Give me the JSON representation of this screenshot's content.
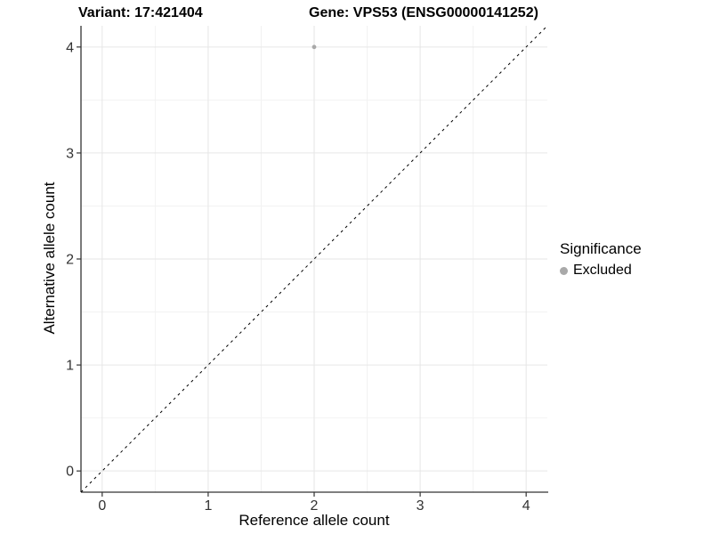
{
  "chart_data": {
    "type": "scatter",
    "title_left": "Variant: 17:421404",
    "title_right": "Gene: VPS53 (ENSG00000141252)",
    "xlabel": "Reference allele count",
    "ylabel": "Alternative allele count",
    "xlim": [
      -0.2,
      4.2
    ],
    "ylim": [
      -0.2,
      4.2
    ],
    "x_ticks": [
      0,
      1,
      2,
      3,
      4
    ],
    "y_ticks": [
      0,
      1,
      2,
      3,
      4
    ],
    "minor_ticks": [
      0.5,
      1.5,
      2.5,
      3.5
    ],
    "grid": "major and minor gridlines on, white panel background",
    "reference_line": {
      "type": "identity",
      "slope": 1,
      "intercept": 0,
      "style": "dashed",
      "color": "#000000"
    },
    "series": [
      {
        "name": "Excluded",
        "color": "#a9a9a9",
        "points": [
          {
            "x": 2,
            "y": 4
          }
        ]
      }
    ],
    "legend": {
      "title": "Significance",
      "position": "right",
      "entries": [
        {
          "label": "Excluded",
          "color": "#a9a9a9"
        }
      ]
    },
    "colors": {
      "grid_major": "#e6e6e6",
      "grid_minor": "#f2f2f2",
      "axis": "#333333",
      "tick_label": "#333333",
      "title_text": "#000000"
    }
  }
}
